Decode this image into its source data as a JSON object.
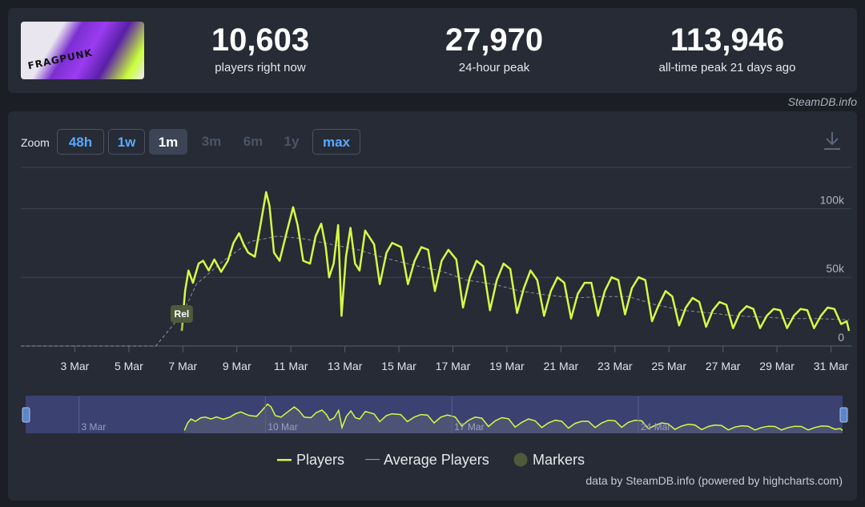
{
  "stats": [
    {
      "value": "10,603",
      "label": "players right now"
    },
    {
      "value": "27,970",
      "label": "24-hour peak"
    },
    {
      "value": "113,946",
      "label": "all-time peak 21 days ago"
    }
  ],
  "game_title_art": "FRAGPUNK",
  "credit": "SteamDB.info",
  "zoom": {
    "label": "Zoom",
    "buttons": [
      {
        "label": "48h",
        "state": "enabled"
      },
      {
        "label": "1w",
        "state": "enabled"
      },
      {
        "label": "1m",
        "state": "selected"
      },
      {
        "label": "3m",
        "state": "disabled"
      },
      {
        "label": "6m",
        "state": "disabled"
      },
      {
        "label": "1y",
        "state": "disabled"
      },
      {
        "label": "max",
        "state": "enabled"
      }
    ]
  },
  "download_icon": "download-icon",
  "legend": {
    "players": "Players",
    "average": "Average Players",
    "markers": "Markers"
  },
  "footer": "data by SteamDB.info (powered by highcharts.com)",
  "colors": {
    "players": "#d4fb45",
    "average": "#8e939d",
    "marker": "#4d5a3c",
    "navigator_fill": "#3b4170"
  },
  "chart_data": {
    "type": "line",
    "xlabel": "",
    "ylabel": "",
    "x_ticks": [
      "3 Mar",
      "5 Mar",
      "7 Mar",
      "9 Mar",
      "11 Mar",
      "13 Mar",
      "15 Mar",
      "17 Mar",
      "19 Mar",
      "21 Mar",
      "23 Mar",
      "25 Mar",
      "27 Mar",
      "29 Mar",
      "31 Mar"
    ],
    "y_ticks": [
      "0",
      "50k",
      "100k"
    ],
    "ylim": [
      0,
      130000
    ],
    "x_range": [
      "2025-03-01",
      "2025-03-31T16:00"
    ],
    "grid": true,
    "legend_position": "bottom",
    "marker": {
      "label": "Rel",
      "date": "2025-03-06T23:00"
    },
    "navigator_ticks": [
      "3 Mar",
      "10 Mar",
      "17 Mar",
      "24 Mar"
    ],
    "series": [
      {
        "name": "Players",
        "type": "line",
        "points": [
          [
            "2025-03-06T23:00",
            11000
          ],
          [
            "2025-03-07T02:00",
            40000
          ],
          [
            "2025-03-07T05:00",
            55000
          ],
          [
            "2025-03-07T09:00",
            46000
          ],
          [
            "2025-03-07T14:00",
            60000
          ],
          [
            "2025-03-07T18:00",
            62000
          ],
          [
            "2025-03-07T23:00",
            55000
          ],
          [
            "2025-03-08T04:00",
            63000
          ],
          [
            "2025-03-08T10:00",
            54000
          ],
          [
            "2025-03-08T16:00",
            62000
          ],
          [
            "2025-03-08T21:00",
            75000
          ],
          [
            "2025-03-09T02:00",
            82000
          ],
          [
            "2025-03-09T06:00",
            74000
          ],
          [
            "2025-03-09T10:00",
            68000
          ],
          [
            "2025-03-09T16:00",
            65000
          ],
          [
            "2025-03-09T21:00",
            88000
          ],
          [
            "2025-03-10T02:00",
            112000
          ],
          [
            "2025-03-10T05:00",
            102000
          ],
          [
            "2025-03-10T09:00",
            68000
          ],
          [
            "2025-03-10T14:00",
            62000
          ],
          [
            "2025-03-10T20:00",
            82000
          ],
          [
            "2025-03-11T02:00",
            101000
          ],
          [
            "2025-03-11T06:00",
            88000
          ],
          [
            "2025-03-11T11:00",
            62000
          ],
          [
            "2025-03-11T17:00",
            60000
          ],
          [
            "2025-03-11T22:00",
            80000
          ],
          [
            "2025-03-12T03:00",
            89000
          ],
          [
            "2025-03-12T07:00",
            72000
          ],
          [
            "2025-03-12T10:00",
            50000
          ],
          [
            "2025-03-12T14:00",
            60000
          ],
          [
            "2025-03-12T18:00",
            88000
          ],
          [
            "2025-03-12T21:00",
            22000
          ],
          [
            "2025-03-13T01:00",
            65000
          ],
          [
            "2025-03-13T05:00",
            86000
          ],
          [
            "2025-03-13T09:00",
            60000
          ],
          [
            "2025-03-13T13:00",
            55000
          ],
          [
            "2025-03-13T18:00",
            84000
          ],
          [
            "2025-03-14T02:00",
            74000
          ],
          [
            "2025-03-14T07:00",
            45000
          ],
          [
            "2025-03-14T13:00",
            68000
          ],
          [
            "2025-03-14T18:00",
            75000
          ],
          [
            "2025-03-15T02:00",
            72000
          ],
          [
            "2025-03-15T08:00",
            45000
          ],
          [
            "2025-03-15T14:00",
            62000
          ],
          [
            "2025-03-15T20:00",
            72000
          ],
          [
            "2025-03-16T02:00",
            70000
          ],
          [
            "2025-03-16T08:00",
            40000
          ],
          [
            "2025-03-16T14:00",
            62000
          ],
          [
            "2025-03-16T20:00",
            70000
          ],
          [
            "2025-03-17T03:00",
            63000
          ],
          [
            "2025-03-17T09:00",
            28000
          ],
          [
            "2025-03-17T15:00",
            50000
          ],
          [
            "2025-03-17T21:00",
            62000
          ],
          [
            "2025-03-18T03:00",
            58000
          ],
          [
            "2025-03-18T09:00",
            26000
          ],
          [
            "2025-03-18T15:00",
            48000
          ],
          [
            "2025-03-18T21:00",
            60000
          ],
          [
            "2025-03-19T03:00",
            56000
          ],
          [
            "2025-03-19T09:00",
            24000
          ],
          [
            "2025-03-19T15:00",
            42000
          ],
          [
            "2025-03-19T21:00",
            55000
          ],
          [
            "2025-03-20T03:00",
            48000
          ],
          [
            "2025-03-20T09:00",
            22000
          ],
          [
            "2025-03-20T15:00",
            40000
          ],
          [
            "2025-03-20T21:00",
            50000
          ],
          [
            "2025-03-21T03:00",
            46000
          ],
          [
            "2025-03-21T09:00",
            20000
          ],
          [
            "2025-03-21T15:00",
            38000
          ],
          [
            "2025-03-21T21:00",
            46000
          ],
          [
            "2025-03-22T03:00",
            46000
          ],
          [
            "2025-03-22T09:00",
            22000
          ],
          [
            "2025-03-22T15:00",
            40000
          ],
          [
            "2025-03-22T21:00",
            50000
          ],
          [
            "2025-03-23T03:00",
            48000
          ],
          [
            "2025-03-23T09:00",
            23000
          ],
          [
            "2025-03-23T15:00",
            42000
          ],
          [
            "2025-03-23T21:00",
            50000
          ],
          [
            "2025-03-24T03:00",
            48000
          ],
          [
            "2025-03-24T09:00",
            18000
          ],
          [
            "2025-03-24T15:00",
            30000
          ],
          [
            "2025-03-24T21:00",
            40000
          ],
          [
            "2025-03-25T03:00",
            36000
          ],
          [
            "2025-03-25T09:00",
            15000
          ],
          [
            "2025-03-25T15:00",
            28000
          ],
          [
            "2025-03-25T21:00",
            35000
          ],
          [
            "2025-03-26T03:00",
            32000
          ],
          [
            "2025-03-26T09:00",
            14000
          ],
          [
            "2025-03-26T15:00",
            26000
          ],
          [
            "2025-03-26T21:00",
            32000
          ],
          [
            "2025-03-27T03:00",
            30000
          ],
          [
            "2025-03-27T09:00",
            13000
          ],
          [
            "2025-03-27T15:00",
            24000
          ],
          [
            "2025-03-27T21:00",
            29000
          ],
          [
            "2025-03-28T03:00",
            27000
          ],
          [
            "2025-03-28T09:00",
            13000
          ],
          [
            "2025-03-28T15:00",
            22000
          ],
          [
            "2025-03-28T21:00",
            27000
          ],
          [
            "2025-03-29T03:00",
            26000
          ],
          [
            "2025-03-29T09:00",
            13000
          ],
          [
            "2025-03-29T15:00",
            22000
          ],
          [
            "2025-03-29T21:00",
            27000
          ],
          [
            "2025-03-30T03:00",
            26000
          ],
          [
            "2025-03-30T09:00",
            13000
          ],
          [
            "2025-03-30T15:00",
            22000
          ],
          [
            "2025-03-30T21:00",
            28000
          ],
          [
            "2025-03-31T03:00",
            27000
          ],
          [
            "2025-03-31T09:00",
            16000
          ],
          [
            "2025-03-31T14:00",
            18000
          ],
          [
            "2025-03-31T16:00",
            11000
          ]
        ]
      },
      {
        "name": "Average Players",
        "type": "dashed",
        "points": [
          [
            "2025-03-01",
            0
          ],
          [
            "2025-03-06T00:00",
            0
          ],
          [
            "2025-03-07T00:00",
            24000
          ],
          [
            "2025-03-07T12:00",
            45000
          ],
          [
            "2025-03-08T12:00",
            62000
          ],
          [
            "2025-03-09T12:00",
            76000
          ],
          [
            "2025-03-10T12:00",
            80000
          ],
          [
            "2025-03-11T12:00",
            78000
          ],
          [
            "2025-03-12T12:00",
            74000
          ],
          [
            "2025-03-13T12:00",
            70000
          ],
          [
            "2025-03-14T12:00",
            64000
          ],
          [
            "2025-03-15T12:00",
            59000
          ],
          [
            "2025-03-16T12:00",
            55000
          ],
          [
            "2025-03-17T12:00",
            48000
          ],
          [
            "2025-03-18T12:00",
            45000
          ],
          [
            "2025-03-19T12:00",
            40000
          ],
          [
            "2025-03-20T12:00",
            37000
          ],
          [
            "2025-03-21T12:00",
            35000
          ],
          [
            "2025-03-22T12:00",
            36000
          ],
          [
            "2025-03-23T12:00",
            36000
          ],
          [
            "2025-03-24T12:00",
            30000
          ],
          [
            "2025-03-25T12:00",
            26000
          ],
          [
            "2025-03-26T12:00",
            24000
          ],
          [
            "2025-03-27T12:00",
            22000
          ],
          [
            "2025-03-28T12:00",
            21000
          ],
          [
            "2025-03-29T12:00",
            20000
          ],
          [
            "2025-03-30T12:00",
            20000
          ],
          [
            "2025-03-31T16:00",
            19000
          ]
        ]
      }
    ]
  }
}
